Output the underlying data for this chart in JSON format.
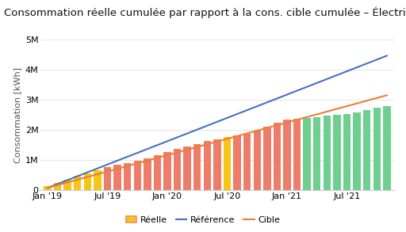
{
  "title_left": "Consommation réelle cumulée par rapport à la cons. cible cumulée",
  "title_right": " – Électricité",
  "ylabel": "Consommation [kWh]",
  "background_color": "#ffffff",
  "grid_color": "#e5e5e5",
  "ylim": [
    0,
    5000000
  ],
  "yticks": [
    0,
    1000000,
    2000000,
    3000000,
    4000000,
    5000000
  ],
  "bar_values": [
    130000,
    250000,
    360000,
    470000,
    570000,
    670000,
    760000,
    840000,
    910000,
    990000,
    1070000,
    1150000,
    1260000,
    1360000,
    1450000,
    1540000,
    1630000,
    1700000,
    1760000,
    1820000,
    1880000,
    1970000,
    2100000,
    2240000,
    2340000,
    2370000,
    2390000,
    2420000,
    2470000,
    2510000,
    2540000,
    2580000,
    2650000,
    2730000,
    2800000
  ],
  "bar_colors": [
    "#f5c518",
    "#f5c518",
    "#f5c518",
    "#f5c518",
    "#f5c518",
    "#f5c518",
    "#ed7d6a",
    "#ed7d6a",
    "#ed7d6a",
    "#ed7d6a",
    "#ed7d6a",
    "#ed7d6a",
    "#ed7d6a",
    "#ed7d6a",
    "#ed7d6a",
    "#ed7d6a",
    "#ed7d6a",
    "#ed7d6a",
    "#f5c518",
    "#ed7d6a",
    "#ed7d6a",
    "#ed7d6a",
    "#ed7d6a",
    "#ed7d6a",
    "#ed7d6a",
    "#ed7d6a",
    "#6ecf8e",
    "#6ecf8e",
    "#6ecf8e",
    "#6ecf8e",
    "#6ecf8e",
    "#6ecf8e",
    "#6ecf8e",
    "#6ecf8e",
    "#6ecf8e"
  ],
  "reference_line_x": [
    0,
    34
  ],
  "reference_line_y": [
    80000,
    4460000
  ],
  "target_line_x": [
    0,
    34
  ],
  "target_line_y": [
    80000,
    3150000
  ],
  "xtick_positions": [
    0,
    6,
    12,
    18,
    24,
    30
  ],
  "xtick_labels": [
    "Jan '19",
    "Jul '19",
    "Jan '20",
    "Jul '20",
    "Jan '21",
    "Jul '21"
  ],
  "reference_color": "#4472c4",
  "target_color": "#ed7d31",
  "legend_labels": [
    "Réelle",
    "Référence",
    "Cible"
  ],
  "title_fontsize": 9.5,
  "axis_fontsize": 8,
  "tick_fontsize": 8
}
